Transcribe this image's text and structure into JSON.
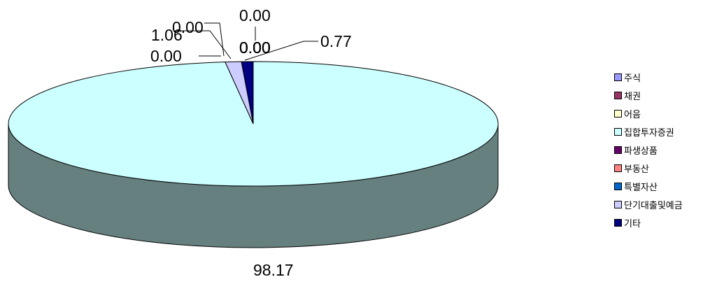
{
  "chart_data": {
    "type": "pie",
    "style": "3d",
    "legend_position": "right",
    "slices": [
      {
        "label": "주식",
        "value": 0.0,
        "value_label": "0.00",
        "color": "#9999FF"
      },
      {
        "label": "채권",
        "value": 0.0,
        "value_label": "0.00",
        "color": "#993366"
      },
      {
        "label": "어음",
        "value": 0.0,
        "value_label": "0.00",
        "color": "#FFFFCC"
      },
      {
        "label": "집합투자증권",
        "value": 98.17,
        "value_label": "98.17",
        "color": "#CCFFFF"
      },
      {
        "label": "파생상품",
        "value": 0.0,
        "value_label": "0.00",
        "color": "#660066"
      },
      {
        "label": "부동산",
        "value": 0.0,
        "value_label": "0.00",
        "color": "#FF8080"
      },
      {
        "label": "특별자산",
        "value": 0.0,
        "value_label": "0.00",
        "color": "#0066CC"
      },
      {
        "label": "단기대출및예금",
        "value": 1.06,
        "value_label": "1.06",
        "color": "#CCCCFF"
      },
      {
        "label": "기타",
        "value": 0.77,
        "value_label": "0.77",
        "color": "#000080"
      }
    ]
  }
}
